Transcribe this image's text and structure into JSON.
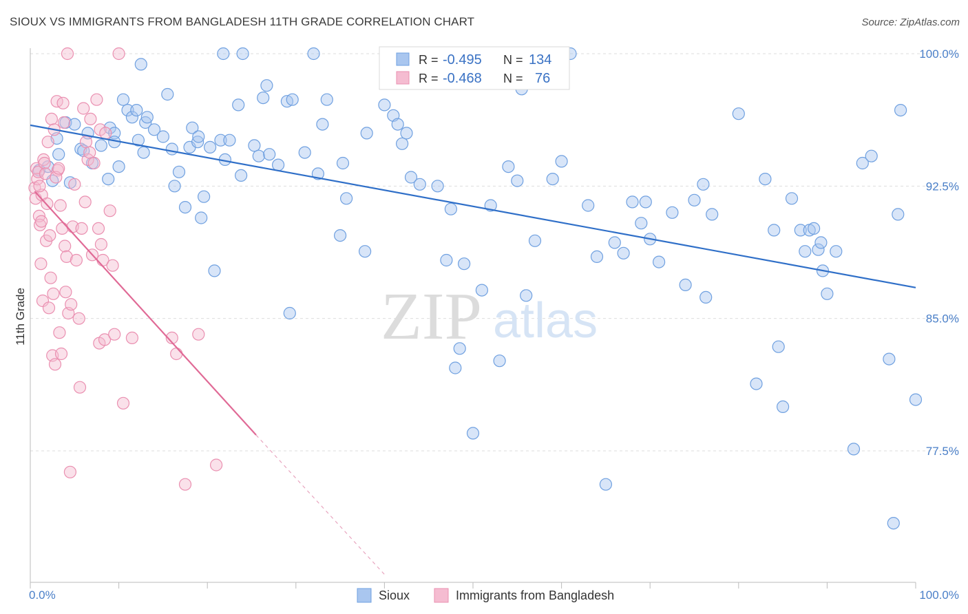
{
  "title": "SIOUX VS IMMIGRANTS FROM BANGLADESH 11TH GRADE CORRELATION CHART",
  "source": "Source: ZipAtlas.com",
  "watermark": {
    "zip": "ZIP",
    "atlas": "atlas"
  },
  "colors": {
    "blue": "#6fa0e0",
    "blue_fill": "#a9c6ef",
    "blue_line": "#2f6fc8",
    "pink": "#ea8fb0",
    "pink_fill": "#f5bcd1",
    "pink_line": "#e06a96",
    "grid": "#dddddd",
    "tick_text": "#4a7fc8"
  },
  "legend": {
    "r_label": "R =",
    "n_label": "N =",
    "entries": [
      {
        "r": "-0.495",
        "n": "134"
      },
      {
        "r": "-0.468",
        "n": "76"
      }
    ]
  },
  "chart_data": {
    "type": "scatter",
    "title": "SIOUX VS IMMIGRANTS FROM BANGLADESH 11TH GRADE CORRELATION CHART",
    "xlabel": "",
    "ylabel": "11th Grade",
    "xlim": [
      0,
      100
    ],
    "ylim": [
      70.5,
      101
    ],
    "x_tick_labels": [
      "0.0%",
      "100.0%"
    ],
    "y_ticks": [
      {
        "value": 77.5,
        "label": "77.5%"
      },
      {
        "value": 85.0,
        "label": "85.0%"
      },
      {
        "value": 92.5,
        "label": "92.5%"
      },
      {
        "value": 100.0,
        "label": "100.0%"
      }
    ],
    "grid": "horizontal-dashed",
    "legend_position": "top-center",
    "series": [
      {
        "name": "Sioux",
        "color": "#6fa0e0",
        "trend": {
          "x": [
            0,
            100
          ],
          "y": [
            95.95,
            86.75
          ]
        },
        "points": [
          [
            3,
            95.2
          ],
          [
            4,
            96.1
          ],
          [
            5,
            96.0
          ],
          [
            5.7,
            94.6
          ],
          [
            6,
            94.5
          ],
          [
            7,
            93.8
          ],
          [
            8,
            94.8
          ],
          [
            9,
            95.8
          ],
          [
            9.5,
            95.5
          ],
          [
            9.5,
            95.0
          ],
          [
            10.5,
            97.4
          ],
          [
            11,
            96.8
          ],
          [
            11.5,
            96.4
          ],
          [
            12,
            96.8
          ],
          [
            12.5,
            99.4
          ],
          [
            12.8,
            94.4
          ],
          [
            13,
            96.1
          ],
          [
            13.2,
            96.4
          ],
          [
            14,
            95.7
          ],
          [
            15,
            95.3
          ],
          [
            15.5,
            97.7
          ],
          [
            16.3,
            92.5
          ],
          [
            16.8,
            93.3
          ],
          [
            17.5,
            91.3
          ],
          [
            18,
            94.7
          ],
          [
            18.3,
            95.8
          ],
          [
            18.9,
            95.0
          ],
          [
            19.3,
            90.7
          ],
          [
            19.6,
            91.9
          ],
          [
            20.3,
            94.7
          ],
          [
            20.8,
            87.7
          ],
          [
            21.5,
            95.1
          ],
          [
            21.8,
            100.0
          ],
          [
            22.5,
            95.1
          ],
          [
            23.5,
            97.1
          ],
          [
            23.8,
            93.1
          ],
          [
            24,
            100.0
          ],
          [
            25.3,
            94.8
          ],
          [
            25.8,
            94.2
          ],
          [
            26.3,
            97.5
          ],
          [
            26.7,
            98.2
          ],
          [
            27,
            94.3
          ],
          [
            29,
            97.3
          ],
          [
            29.3,
            85.3
          ],
          [
            29.6,
            97.4
          ],
          [
            31,
            94.4
          ],
          [
            32,
            100.0
          ],
          [
            32.5,
            93.2
          ],
          [
            33,
            96.0
          ],
          [
            33.5,
            97.4
          ],
          [
            35,
            89.7
          ],
          [
            35.3,
            93.8
          ],
          [
            35.7,
            91.8
          ],
          [
            37.8,
            88.8
          ],
          [
            40,
            97.1
          ],
          [
            41,
            96.5
          ],
          [
            41.5,
            96.0
          ],
          [
            42,
            94.9
          ],
          [
            42.5,
            95.5
          ],
          [
            43,
            93.0
          ],
          [
            45,
            100.0
          ],
          [
            46,
            92.5
          ],
          [
            47,
            88.3
          ],
          [
            47.5,
            91.2
          ],
          [
            48,
            82.2
          ],
          [
            48.5,
            83.3
          ],
          [
            49,
            88.1
          ],
          [
            50,
            78.5
          ],
          [
            51,
            86.6
          ],
          [
            52,
            91.4
          ],
          [
            53,
            82.6
          ],
          [
            54,
            93.6
          ],
          [
            55,
            92.8
          ],
          [
            55.5,
            98.0
          ],
          [
            56,
            86.3
          ],
          [
            57,
            89.4
          ],
          [
            59,
            92.9
          ],
          [
            60,
            93.9
          ],
          [
            61,
            100.0
          ],
          [
            63,
            91.4
          ],
          [
            64,
            88.5
          ],
          [
            65,
            75.6
          ],
          [
            66,
            89.3
          ],
          [
            67,
            88.7
          ],
          [
            68,
            91.6
          ],
          [
            69,
            90.4
          ],
          [
            69.5,
            91.6
          ],
          [
            70,
            89.5
          ],
          [
            71,
            88.2
          ],
          [
            72.5,
            91.0
          ],
          [
            74,
            86.9
          ],
          [
            75,
            91.7
          ],
          [
            76,
            92.6
          ],
          [
            76.3,
            86.2
          ],
          [
            77,
            90.9
          ],
          [
            80,
            96.6
          ],
          [
            82,
            81.3
          ],
          [
            83,
            92.9
          ],
          [
            84,
            90.0
          ],
          [
            84.5,
            83.4
          ],
          [
            85,
            80.0
          ],
          [
            86,
            91.8
          ],
          [
            87,
            90.0
          ],
          [
            87.5,
            88.8
          ],
          [
            88,
            90.0
          ],
          [
            88.5,
            90.1
          ],
          [
            89,
            88.9
          ],
          [
            89.3,
            89.3
          ],
          [
            89.5,
            87.7
          ],
          [
            90,
            86.4
          ],
          [
            91,
            88.8
          ],
          [
            93,
            77.6
          ],
          [
            94,
            93.8
          ],
          [
            95,
            94.2
          ],
          [
            97,
            82.7
          ],
          [
            97.5,
            73.4
          ],
          [
            98,
            90.9
          ],
          [
            98.3,
            96.8
          ],
          [
            100,
            80.4
          ],
          [
            1,
            93.4
          ],
          [
            2,
            93.6
          ],
          [
            2.5,
            92.8
          ],
          [
            3.2,
            94.3
          ],
          [
            4.5,
            92.7
          ],
          [
            6.5,
            95.5
          ],
          [
            8.8,
            92.9
          ],
          [
            10,
            93.6
          ],
          [
            12.2,
            95.1
          ],
          [
            16,
            94.6
          ],
          [
            19,
            95.3
          ],
          [
            22,
            94.0
          ],
          [
            28,
            93.7
          ],
          [
            38,
            95.5
          ],
          [
            44,
            92.6
          ]
        ]
      },
      {
        "name": "Immigrants from Bangladesh",
        "color": "#ea8fb0",
        "trend": {
          "x": [
            0.5,
            25.5
          ],
          "y": [
            92.2,
            78.4
          ]
        },
        "trend_dash": {
          "x": [
            25.5,
            40
          ],
          "y": [
            78.4,
            70.5
          ]
        },
        "points": [
          [
            0.5,
            92.4
          ],
          [
            0.6,
            91.8
          ],
          [
            0.7,
            93.5
          ],
          [
            0.8,
            92.9
          ],
          [
            0.9,
            93.3
          ],
          [
            1,
            90.8
          ],
          [
            1.1,
            90.3
          ],
          [
            1.2,
            88.1
          ],
          [
            1.3,
            92.0
          ],
          [
            1.4,
            86.0
          ],
          [
            1.5,
            94.0
          ],
          [
            1.6,
            93.8
          ],
          [
            1.7,
            93.2
          ],
          [
            1.8,
            89.4
          ],
          [
            1.9,
            91.5
          ],
          [
            2,
            95.0
          ],
          [
            2.1,
            85.6
          ],
          [
            2.2,
            89.7
          ],
          [
            2.3,
            87.3
          ],
          [
            2.4,
            96.3
          ],
          [
            2.5,
            82.9
          ],
          [
            2.6,
            86.4
          ],
          [
            2.7,
            95.7
          ],
          [
            2.8,
            82.4
          ],
          [
            3,
            97.3
          ],
          [
            3.1,
            93.4
          ],
          [
            3.3,
            84.2
          ],
          [
            3.4,
            91.4
          ],
          [
            3.5,
            83.0
          ],
          [
            3.6,
            90.1
          ],
          [
            3.8,
            96.1
          ],
          [
            3.9,
            89.1
          ],
          [
            4,
            86.5
          ],
          [
            4.1,
            88.5
          ],
          [
            4.3,
            85.3
          ],
          [
            4.5,
            76.3
          ],
          [
            4.6,
            85.8
          ],
          [
            4.8,
            90.2
          ],
          [
            5,
            92.6
          ],
          [
            5.2,
            88.3
          ],
          [
            5.5,
            85.0
          ],
          [
            5.6,
            81.1
          ],
          [
            5.8,
            90.1
          ],
          [
            6,
            96.9
          ],
          [
            6.2,
            91.6
          ],
          [
            6.3,
            95.0
          ],
          [
            6.5,
            94.0
          ],
          [
            6.8,
            96.3
          ],
          [
            7,
            88.6
          ],
          [
            7.2,
            93.8
          ],
          [
            7.5,
            97.4
          ],
          [
            7.7,
            90.1
          ],
          [
            7.8,
            83.6
          ],
          [
            7.9,
            95.7
          ],
          [
            8,
            89.2
          ],
          [
            8.2,
            88.3
          ],
          [
            8.4,
            83.8
          ],
          [
            8.5,
            95.5
          ],
          [
            9,
            91.1
          ],
          [
            9.3,
            88.0
          ],
          [
            9.5,
            84.1
          ],
          [
            10,
            100.0
          ],
          [
            10.5,
            80.2
          ],
          [
            11.5,
            83.9
          ],
          [
            16,
            83.9
          ],
          [
            16.5,
            83.0
          ],
          [
            17.5,
            75.6
          ],
          [
            19,
            84.1
          ],
          [
            21,
            76.7
          ],
          [
            3.7,
            97.2
          ],
          [
            1.05,
            92.5
          ],
          [
            1.25,
            90.5
          ],
          [
            2.9,
            93.0
          ],
          [
            4.2,
            100.0
          ],
          [
            6.7,
            94.4
          ],
          [
            3.2,
            93.5
          ]
        ]
      }
    ]
  },
  "bottom_legend": [
    {
      "label": "Sioux"
    },
    {
      "label": "Immigrants from Bangladesh"
    }
  ]
}
